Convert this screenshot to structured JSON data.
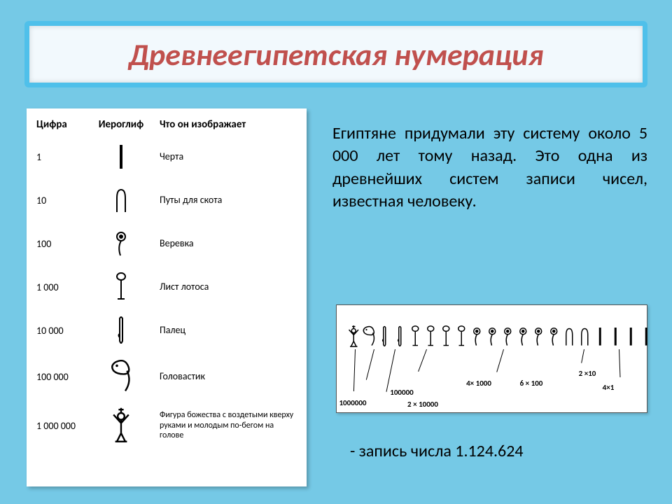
{
  "colors": {
    "slide_bg": "#75c9e6",
    "title_bg": "#f2f9fd",
    "title_border": "#4fc0ea",
    "title_text": "#c0504d"
  },
  "title": "Древнеегипетская нумерация",
  "table": {
    "headers": {
      "number": "Цифра",
      "glyph": "Иероглиф",
      "desc": "Что он изображает"
    },
    "rows": [
      {
        "num": "1",
        "desc": "Черта",
        "glyph": "stroke"
      },
      {
        "num": "10",
        "desc": "Путы для скота",
        "glyph": "heel"
      },
      {
        "num": "100",
        "desc": "Веревка",
        "glyph": "coil"
      },
      {
        "num": "1 000",
        "desc": "Лист лотоса",
        "glyph": "lotus"
      },
      {
        "num": "10 000",
        "desc": "Палец",
        "glyph": "finger"
      },
      {
        "num": "100 000",
        "desc": "Головастик",
        "glyph": "tadpole"
      },
      {
        "num": "1 000 000",
        "desc": "Фигура божества с воздетыми кверху руками и молодым по-бегом на голове",
        "glyph": "god"
      }
    ]
  },
  "body_text": "Египтяне придумали эту систему около 5 000 лет тому назад. Это одна из древнейших систем записи чисел, известная человеку.",
  "example": {
    "labels": [
      "1000000",
      "100000",
      "2 × 10000",
      "4× 1000",
      "6  × 100",
      "2 ×10",
      "4×1"
    ]
  },
  "caption_prefix": "-   запись числа ",
  "caption_number": "1.124.624"
}
